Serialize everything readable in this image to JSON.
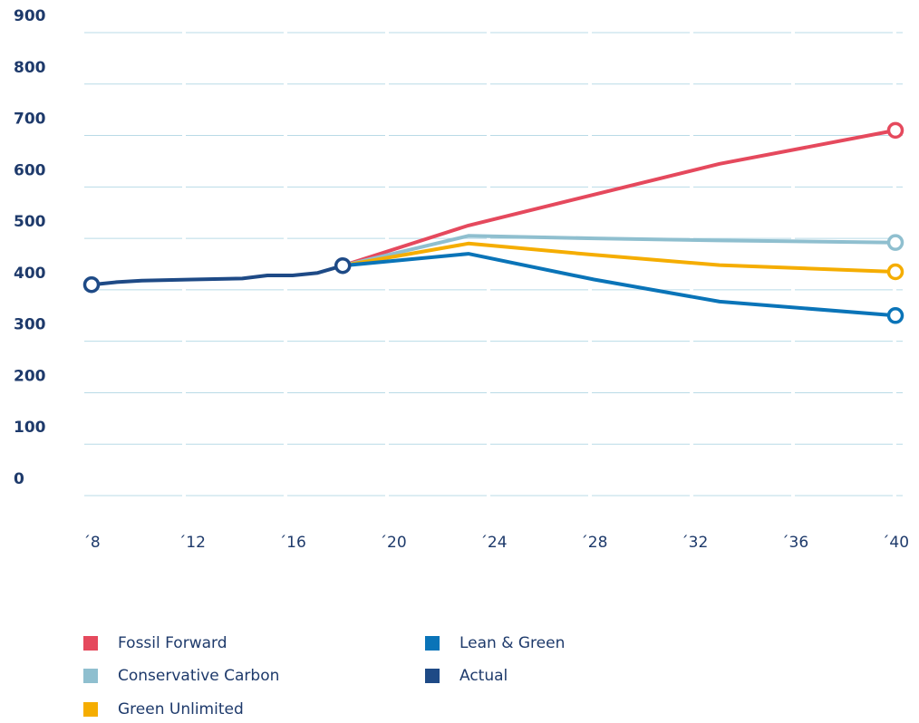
{
  "chart_data": {
    "type": "line",
    "ylim": [
      0,
      900
    ],
    "yticks": [
      0,
      100,
      200,
      300,
      400,
      500,
      600,
      700,
      800,
      900
    ],
    "xlim": [
      2008,
      2040
    ],
    "xtick_labels": [
      "´8",
      "´12",
      "´16",
      "´20",
      "´24",
      "´28",
      "´32",
      "´36",
      "´40"
    ],
    "xtick_values": [
      2008,
      2012,
      2016,
      2020,
      2024,
      2028,
      2032,
      2036,
      2040
    ],
    "grid": true,
    "legend_placement": "bottom-left",
    "series": [
      {
        "name": "Fossil Forward",
        "color": "#e5495d",
        "x": [
          2018,
          2023,
          2033,
          2040
        ],
        "y": [
          447,
          525,
          645,
          710
        ]
      },
      {
        "name": "Conservative Carbon",
        "color": "#8fbfcf",
        "x": [
          2018,
          2023,
          2028,
          2033,
          2040
        ],
        "y": [
          447,
          505,
          500,
          496,
          492
        ]
      },
      {
        "name": "Green Unlimited",
        "color": "#f5ad00",
        "x": [
          2018,
          2023,
          2028,
          2033,
          2040
        ],
        "y": [
          447,
          490,
          468,
          448,
          435
        ]
      },
      {
        "name": "Lean & Green",
        "color": "#0a74b8",
        "x": [
          2018,
          2023,
          2028,
          2033,
          2040
        ],
        "y": [
          447,
          470,
          420,
          377,
          350
        ]
      },
      {
        "name": "Actual",
        "color": "#1e4a86",
        "x": [
          2008,
          2009,
          2010,
          2012,
          2014,
          2015,
          2016,
          2017,
          2018
        ],
        "y": [
          410,
          415,
          418,
          420,
          422,
          428,
          428,
          433,
          447
        ]
      }
    ]
  }
}
